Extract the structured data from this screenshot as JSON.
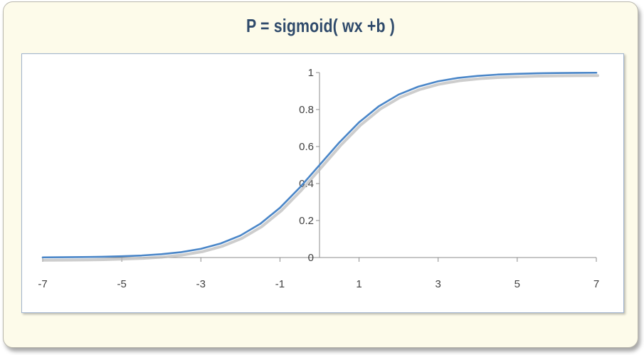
{
  "chart_data": {
    "type": "line",
    "title": "P = sigmoid( wx +b )",
    "xlabel": "",
    "ylabel": "",
    "x_ticks": [
      -7,
      -5,
      -3,
      -1,
      1,
      3,
      5,
      7
    ],
    "y_ticks": [
      0,
      0.2,
      0.4,
      0.6,
      0.8,
      1
    ],
    "xlim": [
      -7,
      7
    ],
    "ylim": [
      0,
      1
    ],
    "grid": false,
    "legend": "none",
    "series": [
      {
        "color": "#4a86c8",
        "shadow_color": "#b8b8b8",
        "x": [
          -7,
          -6.5,
          -6,
          -5.5,
          -5,
          -4.5,
          -4,
          -3.5,
          -3,
          -2.5,
          -2,
          -1.5,
          -1,
          -0.5,
          0,
          0.5,
          1,
          1.5,
          2,
          2.5,
          3,
          3.5,
          4,
          4.5,
          5,
          5.5,
          6,
          6.5,
          7
        ],
        "y": [
          0.001,
          0.0015,
          0.0025,
          0.004,
          0.007,
          0.011,
          0.018,
          0.029,
          0.047,
          0.076,
          0.119,
          0.182,
          0.269,
          0.378,
          0.5,
          0.622,
          0.731,
          0.818,
          0.881,
          0.924,
          0.953,
          0.971,
          0.982,
          0.989,
          0.993,
          0.996,
          0.9975,
          0.9985,
          0.999
        ]
      }
    ]
  }
}
